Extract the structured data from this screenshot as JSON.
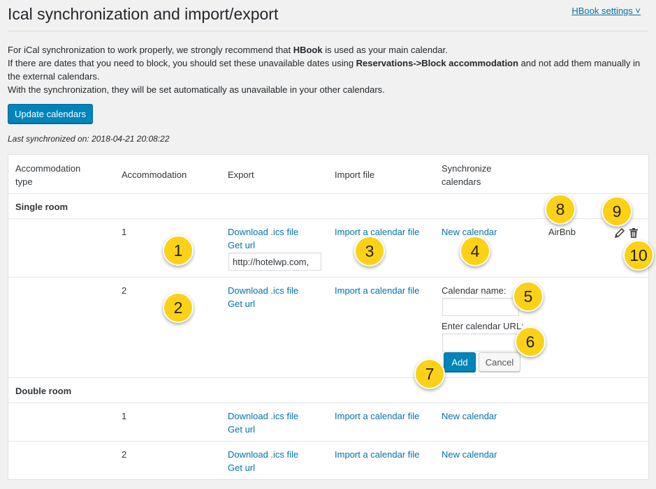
{
  "header": {
    "title": "Ical synchronization and import/export",
    "settings_link": "HBook settings ˅"
  },
  "intro": {
    "line1_a": "For iCal synchronization to work properly, we strongly recommend that ",
    "line1_b": "HBook",
    "line1_c": " is used as your main calendar.",
    "line2_a": "If there are dates that you need to block, you should set these unavailable dates using ",
    "line2_b": "Reservations->Block accommodation",
    "line2_c": " and not add them manually in the external calendars.",
    "line3": "With the synchronization, they will be set automatically as unavailable in your other calendars."
  },
  "update_button": "Update calendars",
  "last_sync": "Last synchronized on: 2018-04-21 20:08:22",
  "table": {
    "headers": {
      "acc_type": "Accommodation type",
      "accommodation": "Accommodation",
      "export": "Export",
      "import": "Import file",
      "sync": "Synchronize calendars"
    },
    "groups": [
      {
        "name": "Single room",
        "rows": [
          {
            "num": "1",
            "download": "Download .ics file",
            "get_url": "Get url",
            "url_value": "http://hotelwp.com,",
            "import": "Import a calendar file",
            "sync": "New calendar",
            "calendar": "AirBnb"
          },
          {
            "num": "2",
            "download": "Download .ics file",
            "get_url": "Get url",
            "import": "Import a calendar file",
            "cal_name_label": "Calendar name:",
            "cal_url_label": "Enter calendar URL:",
            "add": "Add",
            "cancel": "Cancel"
          }
        ]
      },
      {
        "name": "Double room",
        "rows": [
          {
            "num": "1",
            "download": "Download .ics file",
            "get_url": "Get url",
            "import": "Import a calendar file",
            "sync": "New calendar"
          },
          {
            "num": "2",
            "download": "Download .ics file",
            "get_url": "Get url",
            "import": "Import a calendar file",
            "sync": "New calendar"
          }
        ]
      }
    ]
  },
  "callouts": [
    "1",
    "2",
    "3",
    "4",
    "5",
    "6",
    "7",
    "8",
    "9",
    "10"
  ],
  "icons": {
    "edit": "pencil-icon",
    "delete": "trash-icon"
  },
  "colors": {
    "link": "#0073aa",
    "primary": "#0085ba",
    "badge": "#fcd116"
  }
}
